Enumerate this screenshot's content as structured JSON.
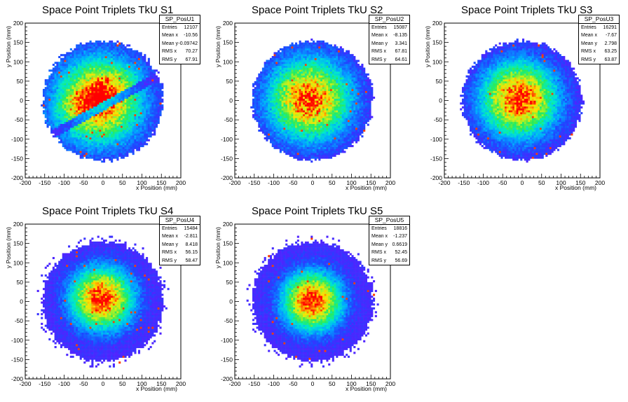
{
  "chart_data": [
    {
      "type": "heatmap",
      "title": "Space Point Triplets TkU S1",
      "xlabel": "x Position (mm)",
      "ylabel": "y Position (mm)",
      "xlim": [
        -200,
        200
      ],
      "ylim": [
        -200,
        200
      ],
      "xticks": [
        "-200",
        "-150",
        "-100",
        "-50",
        "0",
        "50",
        "100",
        "150",
        "200"
      ],
      "yticks": [
        "-200",
        "-150",
        "-100",
        "-50",
        "0",
        "50",
        "100",
        "150",
        "200"
      ],
      "stats": {
        "name": "SP_PosU1",
        "entries": "12107",
        "mean_x": "-10.56",
        "mean_y": "-0.09742",
        "rms_x": "70.27",
        "rms_y": "67.91"
      }
    },
    {
      "type": "heatmap",
      "title": "Space Point Triplets TkU S2",
      "xlabel": "x Position (mm)",
      "ylabel": "y Position (mm)",
      "xlim": [
        -200,
        200
      ],
      "ylim": [
        -200,
        200
      ],
      "xticks": [
        "-200",
        "-150",
        "-100",
        "-50",
        "0",
        "50",
        "100",
        "150",
        "200"
      ],
      "yticks": [
        "-200",
        "-150",
        "-100",
        "-50",
        "0",
        "50",
        "100",
        "150",
        "200"
      ],
      "stats": {
        "name": "SP_PosU2",
        "entries": "15087",
        "mean_x": "-8.135",
        "mean_y": "3.341",
        "rms_x": "67.81",
        "rms_y": "64.61"
      }
    },
    {
      "type": "heatmap",
      "title": "Space Point Triplets TkU S3",
      "xlabel": "x Position (mm)",
      "ylabel": "y Position (mm)",
      "xlim": [
        -200,
        200
      ],
      "ylim": [
        -200,
        200
      ],
      "xticks": [
        "-200",
        "-150",
        "-100",
        "-50",
        "0",
        "50",
        "100",
        "150",
        "200"
      ],
      "yticks": [
        "-200",
        "-150",
        "-100",
        "-50",
        "0",
        "50",
        "100",
        "150",
        "200"
      ],
      "stats": {
        "name": "SP_PosU3",
        "entries": "16291",
        "mean_x": "-7.67",
        "mean_y": "2.798",
        "rms_x": "63.25",
        "rms_y": "63.87"
      }
    },
    {
      "type": "heatmap",
      "title": "Space Point Triplets TkU S4",
      "xlabel": "x Position (mm)",
      "ylabel": "y Position (mm)",
      "xlim": [
        -200,
        200
      ],
      "ylim": [
        -200,
        200
      ],
      "xticks": [
        "-200",
        "-150",
        "-100",
        "-50",
        "0",
        "50",
        "100",
        "150",
        "200"
      ],
      "yticks": [
        "-200",
        "-150",
        "-100",
        "-50",
        "0",
        "50",
        "100",
        "150",
        "200"
      ],
      "stats": {
        "name": "SP_PosU4",
        "entries": "15484",
        "mean_x": "-2.811",
        "mean_y": "8.418",
        "rms_x": "56.15",
        "rms_y": "58.47"
      }
    },
    {
      "type": "heatmap",
      "title": "Space Point Triplets TkU S5",
      "xlabel": "x Position (mm)",
      "ylabel": "y Position (mm)",
      "xlim": [
        -200,
        200
      ],
      "ylim": [
        -200,
        200
      ],
      "xticks": [
        "-200",
        "-150",
        "-100",
        "-50",
        "0",
        "50",
        "100",
        "150",
        "200"
      ],
      "yticks": [
        "-200",
        "-150",
        "-100",
        "-50",
        "0",
        "50",
        "100",
        "150",
        "200"
      ],
      "stats": {
        "name": "SP_PosU5",
        "entries": "18816",
        "mean_x": "-1.237",
        "mean_y": "0.6619",
        "rms_x": "52.45",
        "rms_y": "56.69"
      }
    }
  ],
  "stats_labels": {
    "entries": "Entries",
    "mean_x": "Mean x",
    "mean_y": "Mean y",
    "rms_x": "RMS x",
    "rms_y": "RMS y"
  }
}
